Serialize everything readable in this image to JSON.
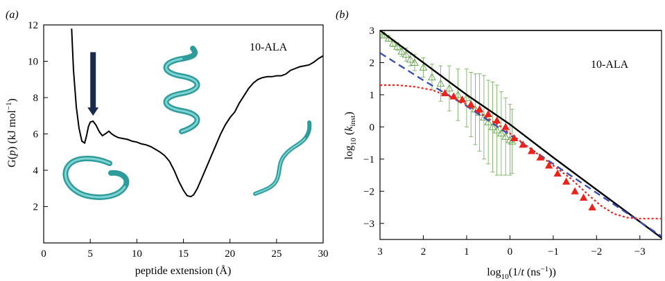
{
  "chart_data": [
    {
      "type": "line",
      "panel_label": "(a)",
      "annotation": "10-ALA",
      "xlabel": "peptide extension (Å)",
      "ylabel_main": "G(",
      "ylabel_var": "p",
      "ylabel_rest": ") (kJ mol",
      "ylabel_sup": "−1",
      "ylabel_end": ")",
      "xlim": [
        0,
        30
      ],
      "ylim": [
        0,
        12
      ],
      "xticks": [
        "0",
        "5",
        "10",
        "15",
        "20",
        "25",
        "30"
      ],
      "yticks": [
        "2",
        "4",
        "6",
        "8",
        "10",
        "12"
      ],
      "grid": false,
      "series": [
        {
          "color": "#000000",
          "x": [
            3.0,
            3.2,
            3.5,
            3.8,
            4.1,
            4.4,
            4.6,
            4.8,
            5.0,
            5.3,
            5.6,
            6.0,
            6.3,
            6.6,
            7.0,
            7.3,
            7.6,
            8.0,
            8.5,
            9.0,
            9.5,
            10.0,
            10.5,
            11.0,
            11.5,
            12.0,
            12.5,
            13.0,
            13.5,
            14.0,
            14.5,
            15.0,
            15.4,
            15.8,
            16.1,
            16.5,
            17.0,
            17.5,
            18.0,
            18.5,
            19.0,
            19.5,
            20.0,
            20.5,
            21.0,
            21.5,
            22.0,
            22.5,
            23.0,
            23.5,
            24.0,
            24.5,
            25.0,
            25.5,
            26.0,
            26.5,
            27.0,
            27.5,
            28.0,
            28.5,
            29.0,
            29.5,
            30.0
          ],
          "y": [
            11.8,
            9.5,
            7.5,
            6.3,
            5.6,
            5.5,
            5.9,
            6.4,
            6.65,
            6.7,
            6.5,
            6.1,
            5.9,
            6.0,
            6.15,
            6.0,
            5.9,
            5.8,
            5.75,
            5.7,
            5.6,
            5.55,
            5.45,
            5.4,
            5.3,
            5.15,
            5.0,
            4.8,
            4.5,
            4.0,
            3.4,
            2.9,
            2.6,
            2.55,
            2.65,
            3.0,
            3.6,
            4.2,
            4.8,
            5.4,
            6.0,
            6.5,
            6.9,
            7.2,
            7.7,
            8.1,
            8.5,
            8.8,
            9.0,
            9.1,
            9.15,
            9.15,
            9.2,
            9.2,
            9.3,
            9.5,
            9.6,
            9.7,
            9.75,
            9.8,
            9.95,
            10.15,
            10.3
          ]
        }
      ],
      "arrow": {
        "x": 5.3,
        "y_from": 10.5,
        "y_to": 7.0,
        "color": "#1a2a4a"
      }
    },
    {
      "type": "scatter",
      "panel_label": "(b)",
      "annotation": "10-ALA",
      "xlabel_main": "log",
      "xlabel_sub": "10",
      "xlabel_rest": "(1/",
      "xlabel_var": "t",
      "xlabel_mid": " (ns",
      "xlabel_sup": "−1",
      "xlabel_end": "))",
      "ylabel_main": "log",
      "ylabel_sub": "10",
      "ylabel_rest": " (",
      "ylabel_var": "k",
      "ylabel_varsub": "inst",
      "ylabel_end": ")",
      "xlim": [
        3,
        -3.5
      ],
      "ylim": [
        -3.5,
        3
      ],
      "xticks": [
        "3",
        "2",
        "1",
        "0",
        "−1",
        "−2",
        "−3"
      ],
      "xtick_values": [
        3,
        2,
        1,
        0,
        -1,
        -2,
        -3
      ],
      "yticks": [
        "3",
        "2",
        "1",
        "0",
        "−1",
        "−2",
        "−3"
      ],
      "ytick_values": [
        3,
        2,
        1,
        0,
        -1,
        -2,
        -3
      ],
      "grid": false,
      "series": [
        {
          "style": "solid-line",
          "color": "#000000",
          "x": [
            3,
            2,
            1,
            0,
            -1,
            -2,
            -3,
            -3.5
          ],
          "y": [
            3.0,
            2.0,
            1.0,
            0.08,
            -0.95,
            -1.95,
            -2.95,
            -3.45
          ]
        },
        {
          "style": "dashed-line",
          "color": "#3a4fb0",
          "x": [
            3,
            2,
            1,
            0,
            -1,
            -2,
            -3,
            -3.5
          ],
          "y": [
            2.3,
            1.45,
            0.65,
            -0.25,
            -1.15,
            -2.05,
            -2.95,
            -3.4
          ]
        },
        {
          "style": "dotted-line",
          "color": "#e8241c",
          "x": [
            3.0,
            2.6,
            2.2,
            1.8,
            1.4,
            1.0,
            0.6,
            0.2,
            -0.2,
            -0.6,
            -1.0,
            -1.4,
            -1.8,
            -2.1,
            -2.4,
            -2.7,
            -3.0,
            -3.5
          ],
          "y": [
            1.3,
            1.3,
            1.25,
            1.15,
            0.95,
            0.7,
            0.35,
            0.0,
            -0.4,
            -0.8,
            -1.2,
            -1.6,
            -2.1,
            -2.45,
            -2.7,
            -2.82,
            -2.85,
            -2.85
          ]
        },
        {
          "style": "filled-triangles",
          "color": "#e8241c",
          "x": [
            1.5,
            1.3,
            1.1,
            0.9,
            0.7,
            0.5,
            0.3,
            0.1,
            -0.1,
            -0.3,
            -0.5,
            -0.7,
            -0.9,
            -1.1,
            -1.3,
            -1.5,
            -1.7,
            -1.9
          ],
          "y": [
            1.05,
            0.95,
            0.85,
            0.7,
            0.55,
            0.4,
            0.2,
            0.0,
            -0.35,
            -0.55,
            -0.75,
            -0.95,
            -1.2,
            -1.45,
            -1.7,
            -2.0,
            -2.2,
            -2.5
          ]
        },
        {
          "style": "open-triangles-errorbars",
          "color": "#6aa84f",
          "x": [
            3.0,
            2.9,
            2.8,
            2.7,
            2.6,
            2.5,
            2.4,
            2.3,
            2.2,
            2.0,
            1.8,
            1.6,
            1.4,
            1.2,
            1.0,
            0.9,
            0.8,
            0.7,
            0.6,
            0.5,
            0.4,
            0.3,
            0.2,
            0.1,
            0.0,
            -0.05
          ],
          "y": [
            2.95,
            2.85,
            2.75,
            2.6,
            2.5,
            2.35,
            2.25,
            2.1,
            2.0,
            1.85,
            1.55,
            1.35,
            1.2,
            1.0,
            0.9,
            0.7,
            0.55,
            0.45,
            0.3,
            0.15,
            0.0,
            -0.1,
            -0.2,
            -0.3,
            -0.4,
            -0.45
          ],
          "err": [
            0.05,
            0.05,
            0.08,
            0.1,
            0.12,
            0.15,
            0.2,
            0.2,
            0.25,
            0.3,
            0.4,
            0.55,
            0.7,
            0.8,
            0.9,
            1.0,
            1.1,
            1.2,
            1.3,
            1.3,
            1.4,
            1.4,
            1.3,
            1.2,
            1.1,
            1.0
          ]
        }
      ],
      "top_line_y": 3.0
    }
  ]
}
